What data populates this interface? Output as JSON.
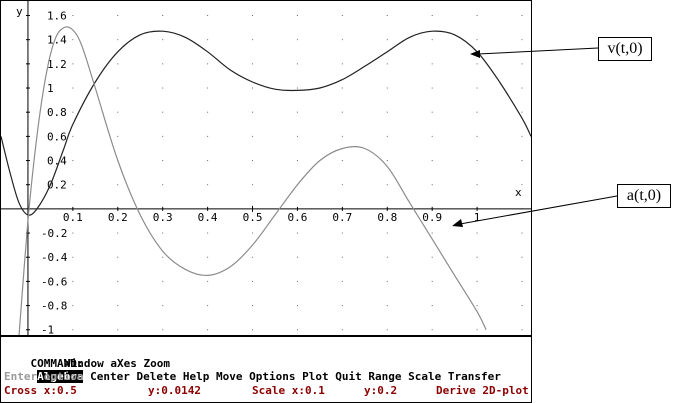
{
  "plot": {
    "x_axis_name": "x",
    "y_axis_name": "y",
    "x_tick_labels": [
      "0.1",
      "0.2",
      "0.3",
      "0.4",
      "0.5",
      "0.6",
      "0.7",
      "0.8",
      "0.9",
      "1"
    ],
    "y_tick_labels_pos": [
      "1.6",
      "1.4",
      "1.2",
      "1",
      "0.8",
      "0.6",
      "0.4",
      "0.2"
    ],
    "y_tick_labels_neg": [
      "-0.2",
      "-0.4",
      "-0.6",
      "-0.8",
      "-1"
    ]
  },
  "chart_data": {
    "type": "line",
    "title": "",
    "xlabel": "x",
    "ylabel": "y",
    "xlim": [
      -0.06,
      1.12
    ],
    "ylim": [
      -1.06,
      1.72
    ],
    "grid": true,
    "series": [
      {
        "name": "v(t,0)",
        "color": "#222222",
        "x": [
          -0.06,
          -0.04,
          -0.02,
          0.0,
          0.02,
          0.05,
          0.08,
          0.1,
          0.15,
          0.2,
          0.25,
          0.3,
          0.35,
          0.4,
          0.45,
          0.5,
          0.55,
          0.6,
          0.65,
          0.7,
          0.75,
          0.8,
          0.85,
          0.9,
          0.95,
          1.0,
          1.05,
          1.1,
          1.12
        ],
        "y": [
          0.6,
          0.3,
          0.05,
          -0.05,
          0.0,
          0.2,
          0.5,
          0.7,
          1.05,
          1.3,
          1.44,
          1.47,
          1.42,
          1.3,
          1.15,
          1.05,
          0.99,
          0.98,
          1.0,
          1.07,
          1.18,
          1.3,
          1.42,
          1.47,
          1.44,
          1.3,
          1.05,
          0.75,
          0.6
        ]
      },
      {
        "name": "a(t,0)",
        "color": "#8c8c8c",
        "x": [
          -0.02,
          0.0,
          0.02,
          0.04,
          0.06,
          0.08,
          0.1,
          0.12,
          0.15,
          0.2,
          0.25,
          0.3,
          0.35,
          0.4,
          0.45,
          0.5,
          0.55,
          0.6,
          0.65,
          0.7,
          0.75,
          0.8,
          0.85,
          0.9,
          0.95,
          1.0,
          1.02
        ],
        "y": [
          -1.05,
          -0.1,
          0.6,
          1.1,
          1.4,
          1.5,
          1.48,
          1.35,
          1.0,
          0.4,
          -0.05,
          -0.35,
          -0.5,
          -0.55,
          -0.48,
          -0.3,
          -0.05,
          0.2,
          0.4,
          0.5,
          0.5,
          0.35,
          0.05,
          -0.25,
          -0.55,
          -0.85,
          -1.0
        ]
      }
    ]
  },
  "callouts": {
    "v_label": "v(t,0)",
    "a_label": "a(t,0)"
  },
  "menu": {
    "command_label": "COMMAND:",
    "items": [
      "Algebra",
      "Center",
      "Delete",
      "Help",
      "Move",
      "Options",
      "Plot",
      "Quit",
      "Range",
      "Scale",
      "Transfer"
    ],
    "items_line2": [
      "Window",
      "aXes",
      "Zoom"
    ],
    "selected": "Algebra"
  },
  "hint": "Enter option",
  "status": {
    "cross": "Cross x:0.5",
    "cross_y": "y:0.0142",
    "scale": "Scale x:0.1",
    "scale_y": "y:0.2",
    "app": "Derive 2D-plot"
  }
}
